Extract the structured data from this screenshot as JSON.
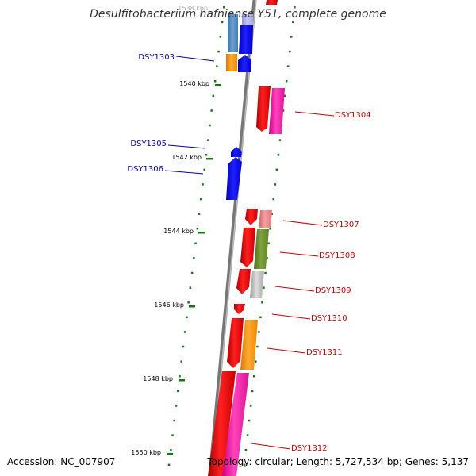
{
  "title": "Desulfitobacterium hafniense Y51, complete genome",
  "top_tick_label": "1538 kbp",
  "scale_ticks": [
    "1540 kbp",
    "1542 kbp",
    "1544 kbp",
    "1546 kbp",
    "1548 kbp",
    "1550 kbp"
  ],
  "genes_forward": [
    "DSY1303",
    "DSY1305",
    "DSY1306"
  ],
  "genes_reverse": [
    "DSY1304",
    "DSY1307",
    "DSY1308",
    "DSY1309",
    "DSY1310",
    "DSY1311",
    "DSY1312"
  ],
  "footer": {
    "accession": "Accession: NC_007907",
    "topology": "Topology: circular; Length: 5,727,534 bp; Genes: 5,137"
  },
  "colors": {
    "forward_label": "#0000aa",
    "reverse_label": "#cc0000",
    "scale_tick": "#117711",
    "backbone": "#888888"
  }
}
